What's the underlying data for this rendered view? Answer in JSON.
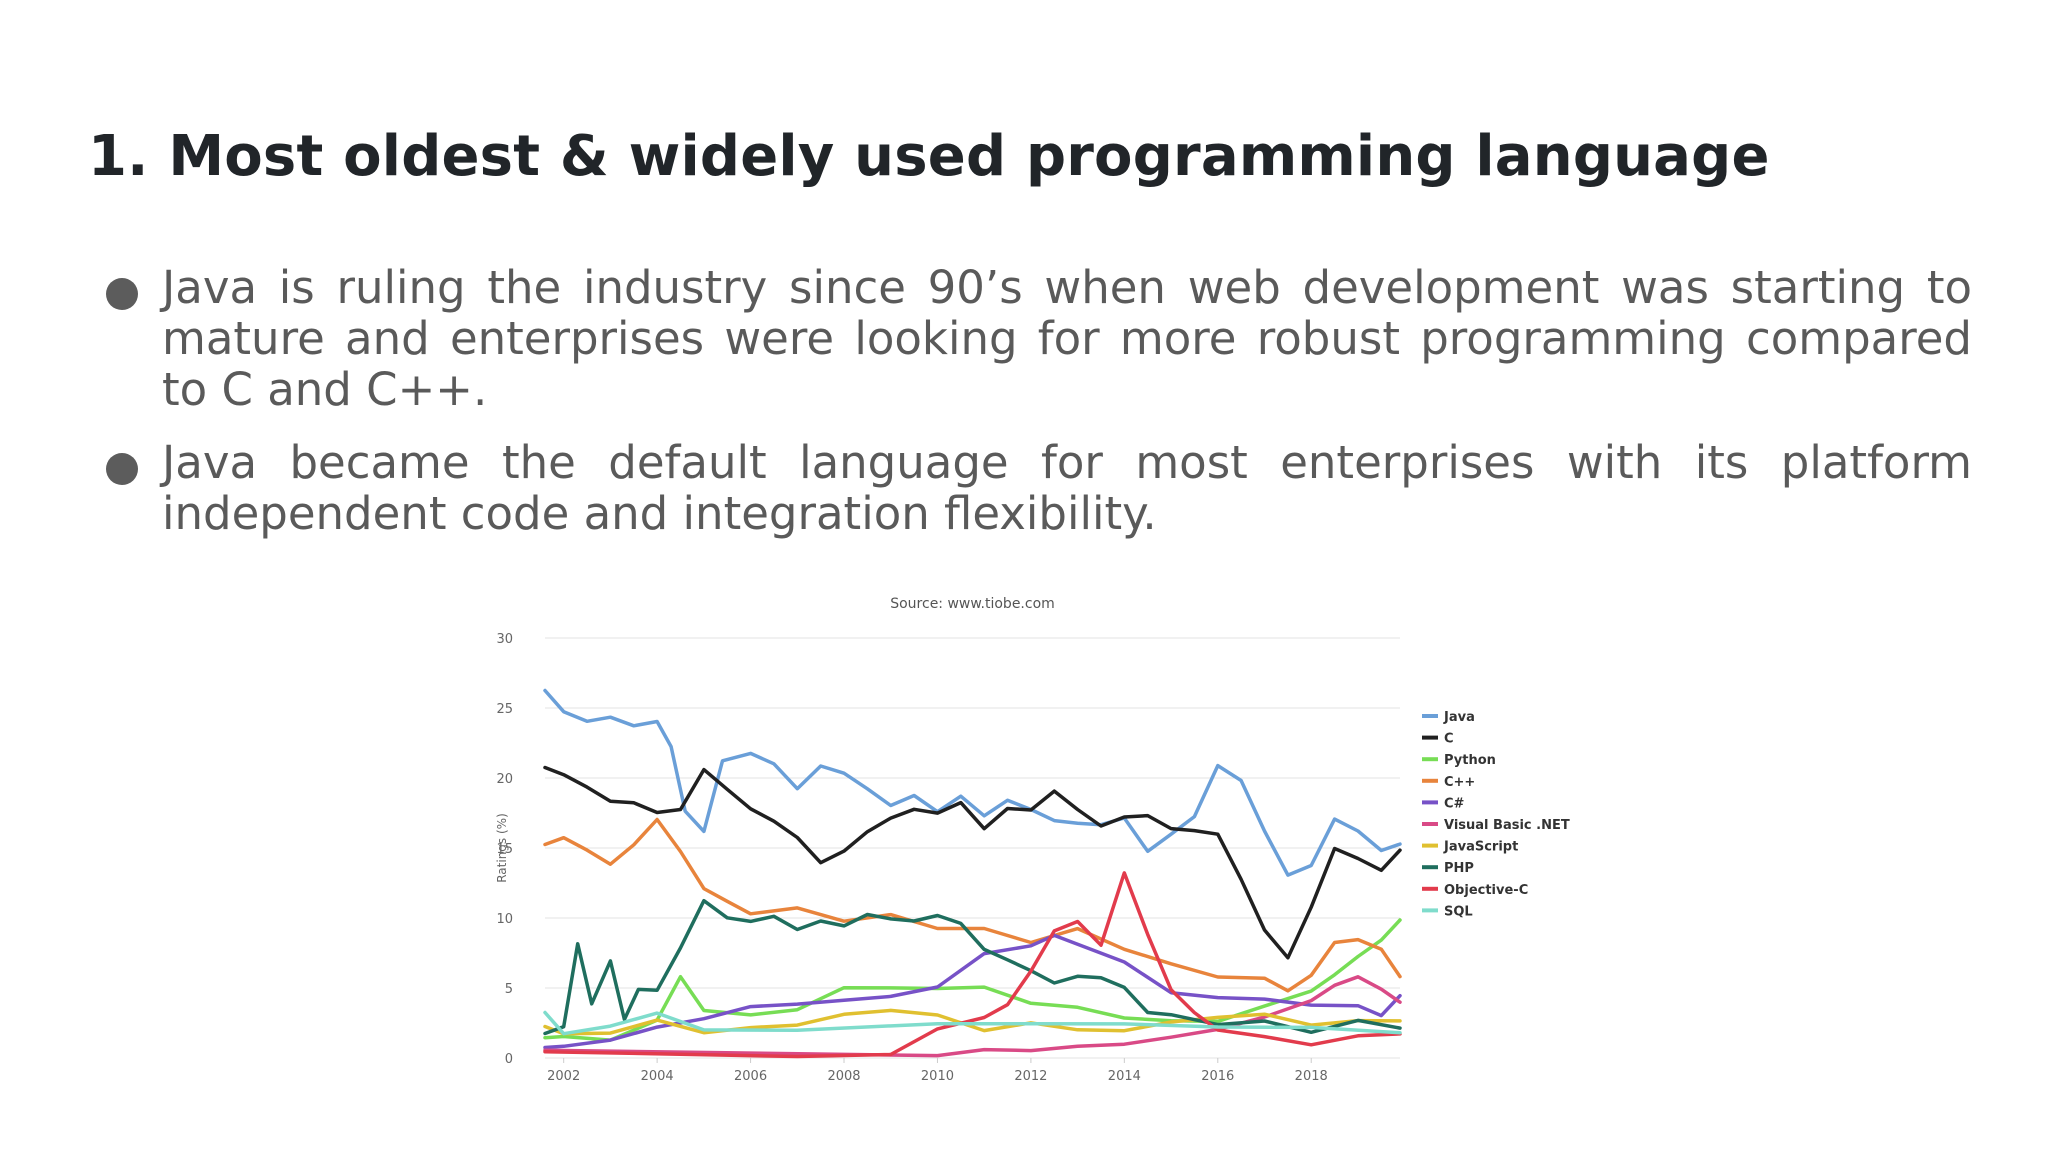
{
  "slide": {
    "title": "1. Most oldest & widely used programming language",
    "bullets": [
      "Java is ruling the industry since 90’s when web development was starting to mature and enterprises were looking for more robust programming compared to C and C++.",
      "Java became the default language for most enterprises with its platform independent code and integration flexibility."
    ]
  },
  "chart_data": {
    "type": "line",
    "title": "Source: www.tiobe.com",
    "xlabel": "",
    "ylabel": "Ratings (%)",
    "xlim": [
      2001.6,
      2019.9
    ],
    "ylim": [
      0,
      30
    ],
    "x_ticks": [
      "2002",
      "2004",
      "2006",
      "2008",
      "2010",
      "2012",
      "2014",
      "2016",
      "2018"
    ],
    "y_ticks": [
      "0",
      "5",
      "10",
      "15",
      "20",
      "25",
      "30"
    ],
    "grid": true,
    "legend_position": "right",
    "series": [
      {
        "name": "Java",
        "color": "#6a9fd8",
        "x": [
          2001.6,
          2002,
          2002.5,
          2003,
          2003.5,
          2004,
          2004.3,
          2004.6,
          2005,
          2005.4,
          2006,
          2006.5,
          2007,
          2007.5,
          2008,
          2008.5,
          2009,
          2009.5,
          2010,
          2010.5,
          2011,
          2011.5,
          2012,
          2012.5,
          2013,
          2013.5,
          2014,
          2014.5,
          2015,
          2015.5,
          2016,
          2016.5,
          2017,
          2017.5,
          2018,
          2018.5,
          2019,
          2019.5,
          2019.9
        ],
        "y": [
          26,
          24.5,
          24.2,
          24.5,
          23.5,
          24,
          22,
          17.5,
          16,
          21,
          22,
          21,
          19,
          21,
          20.5,
          19,
          18,
          19,
          17.5,
          18.5,
          17.5,
          18.5,
          17.5,
          17,
          17,
          16.5,
          17,
          15,
          16,
          17,
          21,
          20,
          16,
          13,
          14,
          17,
          16,
          15,
          15.5
        ]
      },
      {
        "name": "C",
        "color": "#202020",
        "x": [
          2001.6,
          2002,
          2002.5,
          2003,
          2003.5,
          2004,
          2004.5,
          2005,
          2005.5,
          2006,
          2006.5,
          2007,
          2007.5,
          2008,
          2008.5,
          2009,
          2009.5,
          2010,
          2010.5,
          2011,
          2011.5,
          2012,
          2012.5,
          2013,
          2013.5,
          2014,
          2014.5,
          2015,
          2015.5,
          2016,
          2016.5,
          2017,
          2017.5,
          2018,
          2018.5,
          2019,
          2019.5,
          2019.9
        ],
        "y": [
          20.5,
          20,
          19.5,
          18.5,
          18,
          17.5,
          18,
          20.5,
          19,
          18,
          17,
          15.5,
          14,
          15,
          16,
          17,
          18,
          17.5,
          18,
          16.5,
          18,
          17.5,
          19,
          18,
          16.5,
          17,
          17.5,
          16.5,
          16,
          16,
          13,
          9,
          7,
          11,
          15,
          14,
          13.5,
          15
        ]
      },
      {
        "name": "Python",
        "color": "#77dd55",
        "x": [
          2001.6,
          2002,
          2003,
          2004,
          2004.5,
          2005,
          2006,
          2007,
          2008,
          2009,
          2010,
          2011,
          2012,
          2013,
          2014,
          2015,
          2016,
          2017,
          2018,
          2018.5,
          2019,
          2019.5,
          2019.9
        ],
        "y": [
          1.2,
          1.3,
          1.5,
          2.5,
          6,
          3.5,
          3,
          3.5,
          5,
          5,
          5,
          5,
          4,
          3.5,
          3,
          2.5,
          2.8,
          3.5,
          5,
          6,
          7,
          8.5,
          10
        ]
      },
      {
        "name": "C++",
        "color": "#e8843c",
        "x": [
          2001.6,
          2002,
          2002.5,
          2003,
          2003.5,
          2004,
          2004.5,
          2005,
          2005.5,
          2006,
          2007,
          2008,
          2009,
          2010,
          2011,
          2012,
          2013,
          2014,
          2015,
          2016,
          2017,
          2017.5,
          2018,
          2018.5,
          2019,
          2019.5,
          2019.9
        ],
        "y": [
          15,
          15.5,
          15,
          14,
          15,
          17,
          15,
          12,
          11,
          10.5,
          10.5,
          10,
          10,
          9.5,
          9,
          8.5,
          9,
          8,
          6.5,
          6,
          5.5,
          5,
          6,
          8,
          8.5,
          8,
          6
        ]
      },
      {
        "name": "C#",
        "color": "#7752c7",
        "x": [
          2001.6,
          2002,
          2003,
          2004,
          2005,
          2006,
          2007,
          2008,
          2009,
          2010,
          2011,
          2012,
          2012.5,
          2013,
          2014,
          2015,
          2016,
          2017,
          2018,
          2019,
          2019.5,
          2019.9
        ],
        "y": [
          0.5,
          0.6,
          1.5,
          2,
          3,
          3.5,
          4,
          4,
          4.5,
          5,
          7.5,
          8,
          9,
          8,
          7,
          4.5,
          4.5,
          4,
          4,
          3.5,
          3,
          4.5
        ]
      },
      {
        "name": "Visual Basic .NET",
        "color": "#d94a86",
        "x": [
          2001.6,
          2010,
          2011,
          2012,
          2013,
          2014,
          2015,
          2016,
          2017,
          2018,
          2018.5,
          2019,
          2019.5,
          2019.9
        ],
        "y": [
          0.3,
          0.3,
          0.5,
          0.6,
          0.8,
          1,
          1.5,
          2,
          3,
          4,
          5,
          6,
          5,
          4
        ]
      },
      {
        "name": "JavaScript",
        "color": "#e0c030",
        "x": [
          2001.6,
          2002,
          2003,
          2004,
          2005,
          2006,
          2007,
          2008,
          2009,
          2010,
          2011,
          2012,
          2013,
          2014,
          2015,
          2016,
          2017,
          2018,
          2019,
          2019.9
        ],
        "y": [
          2,
          1.5,
          2,
          2.5,
          2,
          2,
          2.5,
          3,
          3.5,
          3,
          2,
          2.5,
          2,
          2,
          2.5,
          3,
          3,
          2.5,
          2.5,
          2.5
        ]
      },
      {
        "name": "PHP",
        "color": "#1f6e5e",
        "x": [
          2001.6,
          2002,
          2002.3,
          2002.6,
          2003,
          2003.3,
          2003.6,
          2004,
          2004.5,
          2005,
          2005.5,
          2006,
          2006.5,
          2007,
          2007.5,
          2008,
          2008.5,
          2009,
          2009.5,
          2010,
          2010.5,
          2011,
          2011.5,
          2012,
          2012.5,
          2013,
          2013.5,
          2014,
          2014.5,
          2015,
          2016,
          2017,
          2018,
          2019,
          2019.9
        ],
        "y": [
          1.5,
          2,
          8,
          4,
          7,
          3,
          5,
          5,
          8,
          11,
          10,
          10,
          10,
          9,
          10,
          9.5,
          10,
          10,
          10,
          10,
          9.5,
          8,
          7,
          6,
          5.5,
          6,
          5.5,
          5,
          3.5,
          3,
          2.5,
          2.5,
          2,
          2.5,
          2
        ]
      },
      {
        "name": "Objective-C",
        "color": "#e23b4c",
        "x": [
          2001.6,
          2007,
          2009,
          2010,
          2011,
          2011.5,
          2012,
          2012.5,
          2013,
          2013.5,
          2014,
          2014.5,
          2015,
          2015.5,
          2016,
          2017,
          2018,
          2019,
          2019.9
        ],
        "y": [
          0.2,
          0.2,
          0.3,
          2,
          3,
          4,
          6,
          9,
          10,
          8,
          13,
          9,
          5,
          3,
          2,
          1.5,
          1,
          1.5,
          1.5
        ]
      },
      {
        "name": "SQL",
        "color": "#7fdccc",
        "x": [
          2001.6,
          2002,
          2003,
          2004,
          2005,
          2007,
          2010,
          2012,
          2014,
          2016,
          2018,
          2019.9
        ],
        "y": [
          3,
          1.5,
          2.5,
          3,
          2.2,
          2.2,
          2.2,
          2.2,
          2.2,
          2,
          2,
          2
        ]
      }
    ]
  }
}
